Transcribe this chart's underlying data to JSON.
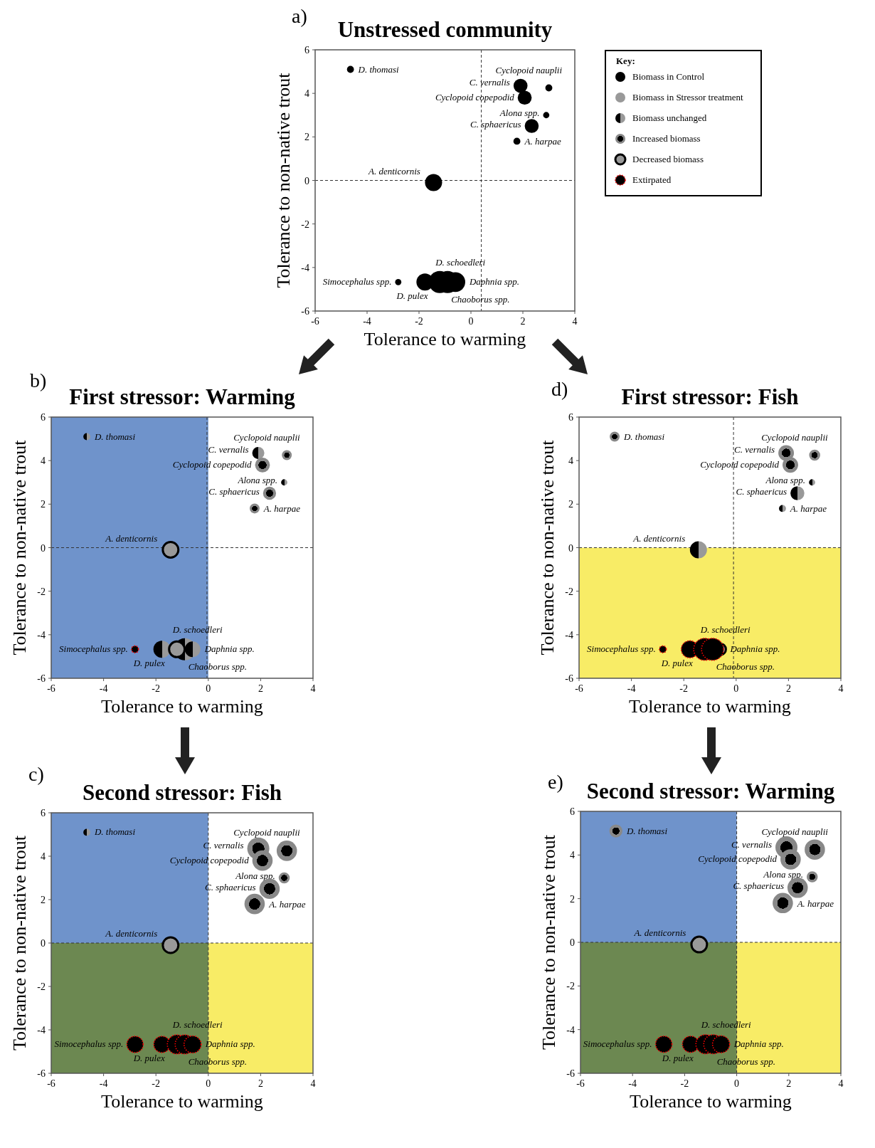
{
  "chart_data": [
    {
      "type": "bubble",
      "title": "Unstressed community",
      "xlabel": "Tolerance to warming",
      "ylabel": "Tolerance to non-native trout",
      "xlim": [
        -6,
        4
      ],
      "ylim": [
        -6,
        6
      ],
      "xticks": [
        -6,
        -4,
        -2,
        0,
        2,
        4
      ],
      "yticks": [
        -6,
        -4,
        -2,
        0,
        2,
        4,
        6
      ],
      "legend": "top right",
      "legend_title": "Key:",
      "ref_lines": [
        {
          "axis": "x",
          "value": 0.4,
          "line_style": "dashed"
        },
        {
          "axis": "y",
          "value": 0,
          "line_style": "dashed"
        }
      ],
      "series": [
        {
          "name": "Biomass in Control",
          "color": "#000000",
          "x": [
            -4.64,
            1.91,
            3.0,
            2.07,
            2.9,
            2.34,
            1.77,
            -1.44,
            -2.8,
            -1.77,
            -1.2,
            -0.9,
            -0.6
          ],
          "values": [
            5.1,
            4.35,
            4.25,
            3.8,
            3.0,
            2.5,
            1.8,
            -0.1,
            -4.67,
            -4.67,
            -4.67,
            -4.67,
            -4.67
          ],
          "sizes": [
            0.1,
            0.4,
            0.1,
            0.4,
            0.08,
            0.4,
            0.1,
            0.6,
            0.08,
            0.6,
            1,
            1,
            0.8
          ]
        },
        {
          "name": "Biomass in Stressor treatment",
          "color": "#999999"
        },
        {
          "name": "Biomass unchanged",
          "color": "#000000"
        },
        {
          "name": "Increased biomass",
          "color": "#888888"
        },
        {
          "name": "Decreased biomass",
          "color": "#000000"
        },
        {
          "name": "Extirpated",
          "color": "#ff0000"
        }
      ],
      "annotations": [
        "a)",
        {
          "text": "D. thomasi",
          "x": -4.64,
          "y": 5.1
        },
        {
          "text": "Cyclopoid nauplii",
          "x": 3.0,
          "y": 4.25
        },
        {
          "text": "C. vernalis",
          "x": 1.91,
          "y": 4.35
        },
        {
          "text": "Cyclopoid copepodid",
          "x": 2.07,
          "y": 3.8
        },
        {
          "text": "Alona spp.",
          "x": 2.9,
          "y": 3.0
        },
        {
          "text": "C. sphaericus",
          "x": 2.34,
          "y": 2.5
        },
        {
          "text": "A. harpae",
          "x": 1.77,
          "y": 1.8
        },
        {
          "text": "A. denticornis",
          "x": -1.44,
          "y": -0.1
        },
        {
          "text": "D. schoedleri",
          "x": -1.2,
          "y": -4.67
        },
        {
          "text": "Simocephalus spp.",
          "x": -2.8,
          "y": -4.67
        },
        {
          "text": "Daphnia spp.",
          "x": -0.6,
          "y": -4.67
        },
        {
          "text": "D. pulex",
          "x": -1.77,
          "y": -4.67
        },
        {
          "text": "Chaoborus spp.",
          "x": -0.9,
          "y": -4.67
        }
      ]
    },
    {
      "type": "bubble",
      "title": "First stressor: Warming",
      "xlabel": "Tolerance to warming",
      "ylabel": "Tolerance to non-native trout",
      "xlim": [
        -6,
        4
      ],
      "ylim": [
        -6,
        6
      ],
      "xticks": [
        -6,
        -4,
        -2,
        0,
        2,
        4
      ],
      "yticks": [
        -6,
        -4,
        -2,
        0,
        2,
        4,
        6
      ],
      "bands": [
        {
          "axis": "x",
          "from": -6,
          "to": 0,
          "color": "#6f93cb"
        }
      ],
      "ref_lines": [
        {
          "axis": "x",
          "value": -0.05,
          "line_style": "dashed"
        },
        {
          "axis": "y",
          "value": 0,
          "line_style": "dashed"
        }
      ],
      "series": [
        {
          "color": "#000000"
        },
        {
          "color": "#999999"
        },
        {
          "color": "#000000",
          "x": [
            -4.64,
            1.91,
            2.9,
            -1.77,
            -0.9,
            -0.6
          ],
          "values": [
            5.1,
            4.35,
            3.0,
            -4.67,
            -4.67,
            -4.67
          ],
          "sizes": [
            0.1,
            0.3,
            0.08,
            0.6,
            1,
            0.5
          ]
        },
        {
          "color": "#888888",
          "x": [
            3.0,
            2.07,
            2.34,
            1.77
          ],
          "values": [
            4.25,
            3.8,
            2.5,
            1.8
          ],
          "sizes": [
            0.2,
            0.45,
            0.35,
            0.2
          ]
        },
        {
          "color": "#000000",
          "x": [
            -1.44,
            -1.2
          ],
          "values": [
            -0.1,
            -4.67
          ],
          "sizes": [
            0.5,
            0.5
          ]
        },
        {
          "color": "#ff0000",
          "x": [
            -2.8
          ],
          "values": [
            -4.67
          ],
          "sizes": [
            0.1
          ]
        }
      ],
      "annotations": [
        "b)",
        {
          "text": "D. thomasi",
          "x": -4.64,
          "y": 5.1
        },
        {
          "text": "Cyclopoid nauplii",
          "x": 3.0,
          "y": 4.25
        },
        {
          "text": "C. vernalis",
          "x": 1.91,
          "y": 4.35
        },
        {
          "text": "Cyclopoid copepodid",
          "x": 2.07,
          "y": 3.8
        },
        {
          "text": "Alona spp.",
          "x": 2.9,
          "y": 3.0
        },
        {
          "text": "C. sphaericus",
          "x": 2.34,
          "y": 2.5
        },
        {
          "text": "A. harpae",
          "x": 1.77,
          "y": 1.8
        },
        {
          "text": "A. denticornis",
          "x": -1.44,
          "y": -0.1
        },
        {
          "text": "D. schoedleri",
          "x": -1.2,
          "y": -4.67
        },
        {
          "text": "Simocephalus spp.",
          "x": -2.8,
          "y": -4.67
        },
        {
          "text": "Daphnia spp.",
          "x": -0.6,
          "y": -4.67
        },
        {
          "text": "D. pulex",
          "x": -1.77,
          "y": -4.67
        },
        {
          "text": "Chaoborus spp.",
          "x": -0.9,
          "y": -4.67
        }
      ]
    },
    {
      "type": "bubble",
      "title": "Second stressor: Fish",
      "xlabel": "Tolerance to warming",
      "ylabel": "Tolerance to non-native trout",
      "xlim": [
        -6,
        4
      ],
      "ylim": [
        -6,
        6
      ],
      "xticks": [
        -6,
        -4,
        -2,
        0,
        2,
        4
      ],
      "yticks": [
        -6,
        -4,
        -2,
        0,
        2,
        4,
        6
      ],
      "bands": [
        {
          "axis": "x",
          "from": -6,
          "to": 0,
          "color": "#6f93cb"
        },
        {
          "axis": "y",
          "from": -6,
          "to": 0,
          "color": "#f8ec66"
        }
      ],
      "ref_lines": [
        {
          "axis": "x",
          "value": 0,
          "line_style": "dashed"
        },
        {
          "axis": "y",
          "value": 0,
          "line_style": "dashed"
        }
      ],
      "series": [
        {
          "color": "#000000"
        },
        {
          "color": "#999999"
        },
        {
          "color": "#000000",
          "x": [
            -4.64
          ],
          "values": [
            5.1
          ],
          "sizes": [
            0.1
          ]
        },
        {
          "color": "#888888",
          "x": [
            1.91,
            3.0,
            2.07,
            2.9,
            2.34,
            1.77
          ],
          "values": [
            4.35,
            4.25,
            3.8,
            3.0,
            2.5,
            1.8
          ],
          "sizes": [
            1,
            0.85,
            0.85,
            0.25,
            0.85,
            0.85
          ]
        },
        {
          "color": "#000000",
          "x": [
            -1.44
          ],
          "values": [
            -0.1
          ],
          "sizes": [
            0.5
          ]
        },
        {
          "color": "#ff0000",
          "x": [
            -2.8,
            -1.77,
            -1.2,
            -0.9,
            -0.6
          ],
          "values": [
            -4.67,
            -4.67,
            -4.67,
            -4.67,
            -4.67
          ],
          "sizes": [
            0.55,
            0.55,
            0.75,
            0.75,
            0.6
          ]
        }
      ],
      "annotations": [
        "c)",
        {
          "text": "D. thomasi",
          "x": -4.64,
          "y": 5.1
        },
        {
          "text": "Cyclopoid nauplii",
          "x": 3.0,
          "y": 4.25
        },
        {
          "text": "C. vernalis",
          "x": 1.91,
          "y": 4.35
        },
        {
          "text": "Cyclopoid copepodid",
          "x": 2.07,
          "y": 3.8
        },
        {
          "text": "Alona spp.",
          "x": 2.9,
          "y": 3.0
        },
        {
          "text": "C. sphaericus",
          "x": 2.34,
          "y": 2.5
        },
        {
          "text": "A. harpae",
          "x": 1.77,
          "y": 1.8
        },
        {
          "text": "A. denticornis",
          "x": -1.44,
          "y": -0.1
        },
        {
          "text": "D. schoedleri",
          "x": -1.2,
          "y": -4.67
        },
        {
          "text": "Simocephalus spp.",
          "x": -2.8,
          "y": -4.67
        },
        {
          "text": "Daphnia spp.",
          "x": -0.6,
          "y": -4.67
        },
        {
          "text": "D. pulex",
          "x": -1.77,
          "y": -4.67
        },
        {
          "text": "Chaoborus spp.",
          "x": -0.9,
          "y": -4.67
        }
      ]
    },
    {
      "type": "bubble",
      "title": "First stressor: Fish",
      "xlabel": "Tolerance to warming",
      "ylabel": "Tolerance to non-native trout",
      "xlim": [
        -6,
        4
      ],
      "ylim": [
        -6,
        6
      ],
      "xticks": [
        -6,
        -4,
        -2,
        0,
        2,
        4
      ],
      "yticks": [
        -6,
        -4,
        -2,
        0,
        2,
        4,
        6
      ],
      "bands": [
        {
          "axis": "y",
          "from": -6,
          "to": 0,
          "color": "#f8ec66"
        }
      ],
      "ref_lines": [
        {
          "axis": "x",
          "value": -0.1,
          "line_style": "dashed"
        },
        {
          "axis": "y",
          "value": 0,
          "line_style": "dashed"
        }
      ],
      "series": [
        {
          "color": "#000000"
        },
        {
          "color": "#999999"
        },
        {
          "color": "#000000",
          "x": [
            2.9,
            2.34,
            1.77,
            -1.44
          ],
          "values": [
            3.0,
            2.5,
            1.8,
            -0.1
          ],
          "sizes": [
            0.08,
            0.4,
            0.1,
            0.6
          ]
        },
        {
          "color": "#888888",
          "x": [
            -4.64,
            1.91,
            3.0,
            2.07
          ],
          "values": [
            5.1,
            4.35,
            4.25,
            3.8
          ],
          "sizes": [
            0.2,
            0.5,
            0.25,
            0.5
          ]
        },
        {
          "color": "#000000",
          "x": [
            -0.6
          ],
          "values": [
            -4.67
          ],
          "sizes": [
            0.25
          ]
        },
        {
          "color": "#ff0000",
          "x": [
            -2.8,
            -1.77,
            -1.2,
            -0.9
          ],
          "values": [
            -4.67,
            -4.67,
            -4.67,
            -4.67
          ],
          "sizes": [
            0.1,
            0.6,
            1,
            1
          ]
        }
      ],
      "annotations": [
        "d)",
        {
          "text": "D. thomasi",
          "x": -4.64,
          "y": 5.1
        },
        {
          "text": "Cyclopoid nauplii",
          "x": 3.0,
          "y": 4.25
        },
        {
          "text": "C. vernalis",
          "x": 1.91,
          "y": 4.35
        },
        {
          "text": "Cyclopoid copepodid",
          "x": 2.07,
          "y": 3.8
        },
        {
          "text": "Alona spp.",
          "x": 2.9,
          "y": 3.0
        },
        {
          "text": "C. sphaericus",
          "x": 2.34,
          "y": 2.5
        },
        {
          "text": "A. harpae",
          "x": 1.77,
          "y": 1.8
        },
        {
          "text": "A. denticornis",
          "x": -1.44,
          "y": -0.1
        },
        {
          "text": "D. schoedleri",
          "x": -1.2,
          "y": -4.67
        },
        {
          "text": "Simocephalus spp.",
          "x": -2.8,
          "y": -4.67
        },
        {
          "text": "Daphnia spp.",
          "x": -0.6,
          "y": -4.67
        },
        {
          "text": "D. pulex",
          "x": -1.77,
          "y": -4.67
        },
        {
          "text": "Chaoborus spp.",
          "x": -0.9,
          "y": -4.67
        }
      ]
    },
    {
      "type": "bubble",
      "title": "Second stressor: Warming",
      "xlabel": "Tolerance to warming",
      "ylabel": "Tolerance to non-native trout",
      "xlim": [
        -6,
        4
      ],
      "ylim": [
        -6,
        6
      ],
      "xticks": [
        -6,
        -4,
        -2,
        0,
        2,
        4
      ],
      "yticks": [
        -6,
        -4,
        -2,
        0,
        2,
        4,
        6
      ],
      "bands": [
        {
          "axis": "x",
          "from": -6,
          "to": 0,
          "color": "#6f93cb"
        },
        {
          "axis": "y",
          "from": -6,
          "to": 0,
          "color": "#f8ec66"
        }
      ],
      "ref_lines": [
        {
          "axis": "x",
          "value": 0,
          "line_style": "dashed"
        },
        {
          "axis": "y",
          "value": 0,
          "line_style": "dashed"
        }
      ],
      "series": [
        {
          "color": "#000000"
        },
        {
          "color": "#999999"
        },
        {
          "color": "#000000"
        },
        {
          "color": "#888888",
          "x": [
            -4.64,
            1.91,
            3.0,
            2.07,
            2.9,
            2.34,
            1.77
          ],
          "values": [
            5.1,
            4.35,
            4.25,
            3.8,
            3.0,
            2.5,
            1.8
          ],
          "sizes": [
            0.35,
            1,
            0.85,
            0.85,
            0.25,
            0.85,
            0.85
          ]
        },
        {
          "color": "#000000",
          "x": [
            -1.44
          ],
          "values": [
            -0.1
          ],
          "sizes": [
            0.5
          ]
        },
        {
          "color": "#ff0000",
          "x": [
            -2.8,
            -1.77,
            -1.2,
            -0.9,
            -0.6
          ],
          "values": [
            -4.67,
            -4.67,
            -4.67,
            -4.67,
            -4.67
          ],
          "sizes": [
            0.55,
            0.55,
            0.75,
            0.75,
            0.6
          ]
        }
      ],
      "annotations": [
        "e)",
        {
          "text": "D. thomasi",
          "x": -4.64,
          "y": 5.1
        },
        {
          "text": "Cyclopoid nauplii",
          "x": 3.0,
          "y": 4.25
        },
        {
          "text": "C. vernalis",
          "x": 1.91,
          "y": 4.35
        },
        {
          "text": "Cyclopoid copepodid",
          "x": 2.07,
          "y": 3.8
        },
        {
          "text": "Alona spp.",
          "x": 2.9,
          "y": 3.0
        },
        {
          "text": "C. sphaericus",
          "x": 2.34,
          "y": 2.5
        },
        {
          "text": "A. harpae",
          "x": 1.77,
          "y": 1.8
        },
        {
          "text": "A. denticornis",
          "x": -1.44,
          "y": -0.1
        },
        {
          "text": "D. schoedleri",
          "x": -1.2,
          "y": -4.67
        },
        {
          "text": "Simocephalus spp.",
          "x": -2.8,
          "y": -4.67
        },
        {
          "text": "Daphnia spp.",
          "x": -0.6,
          "y": -4.67
        },
        {
          "text": "D. pulex",
          "x": -1.77,
          "y": -4.67
        },
        {
          "text": "Chaoborus spp.",
          "x": -0.9,
          "y": -4.67
        }
      ]
    }
  ]
}
